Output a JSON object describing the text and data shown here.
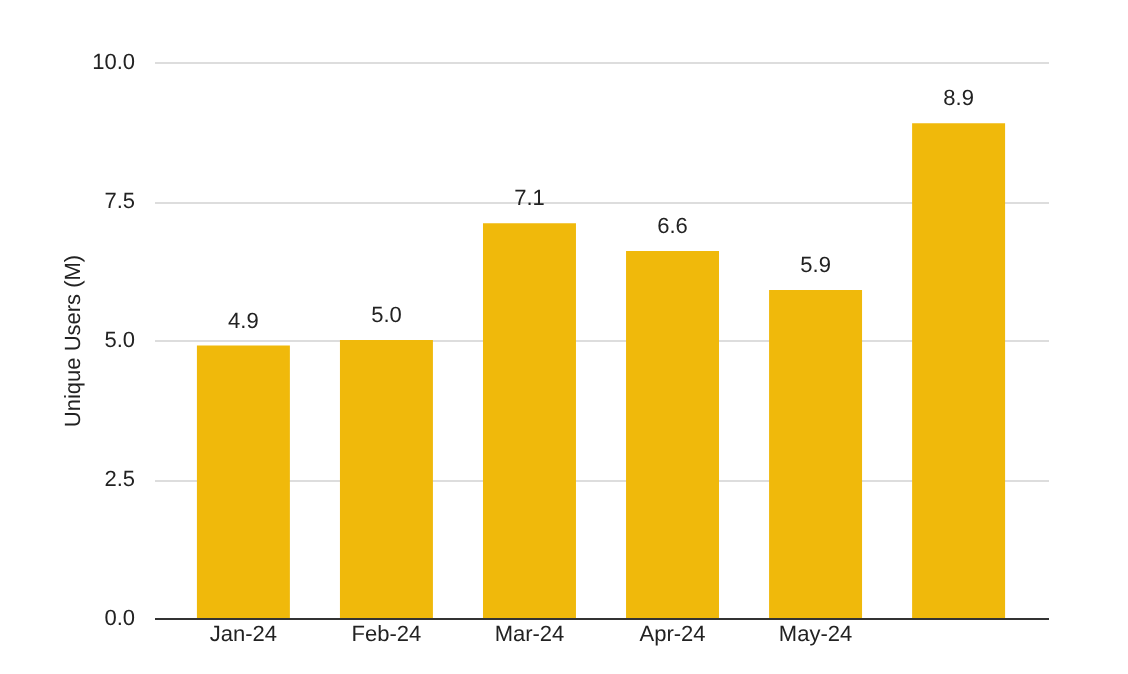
{
  "chart_data": {
    "type": "bar",
    "ylabel": "Unique Users (M)",
    "categories": [
      "Jan-24",
      "Feb-24",
      "Mar-24",
      "Apr-24",
      "May-24",
      null
    ],
    "values": [
      4.9,
      5.0,
      7.1,
      6.6,
      5.9,
      8.9
    ],
    "color": "#f0b90b",
    "ylim": [
      0,
      10
    ],
    "yticks": [
      {
        "value": 0,
        "label": "0.0"
      },
      {
        "value": 2.5,
        "label": "2.5"
      },
      {
        "value": 5,
        "label": "5.0"
      },
      {
        "value": 7.5,
        "label": "7.5"
      },
      {
        "value": 10,
        "label": "10.0"
      }
    ],
    "grid": "y",
    "value_labels": [
      "4.9",
      "5.0",
      "7.1",
      "6.6",
      "5.9",
      "8.9"
    ]
  }
}
